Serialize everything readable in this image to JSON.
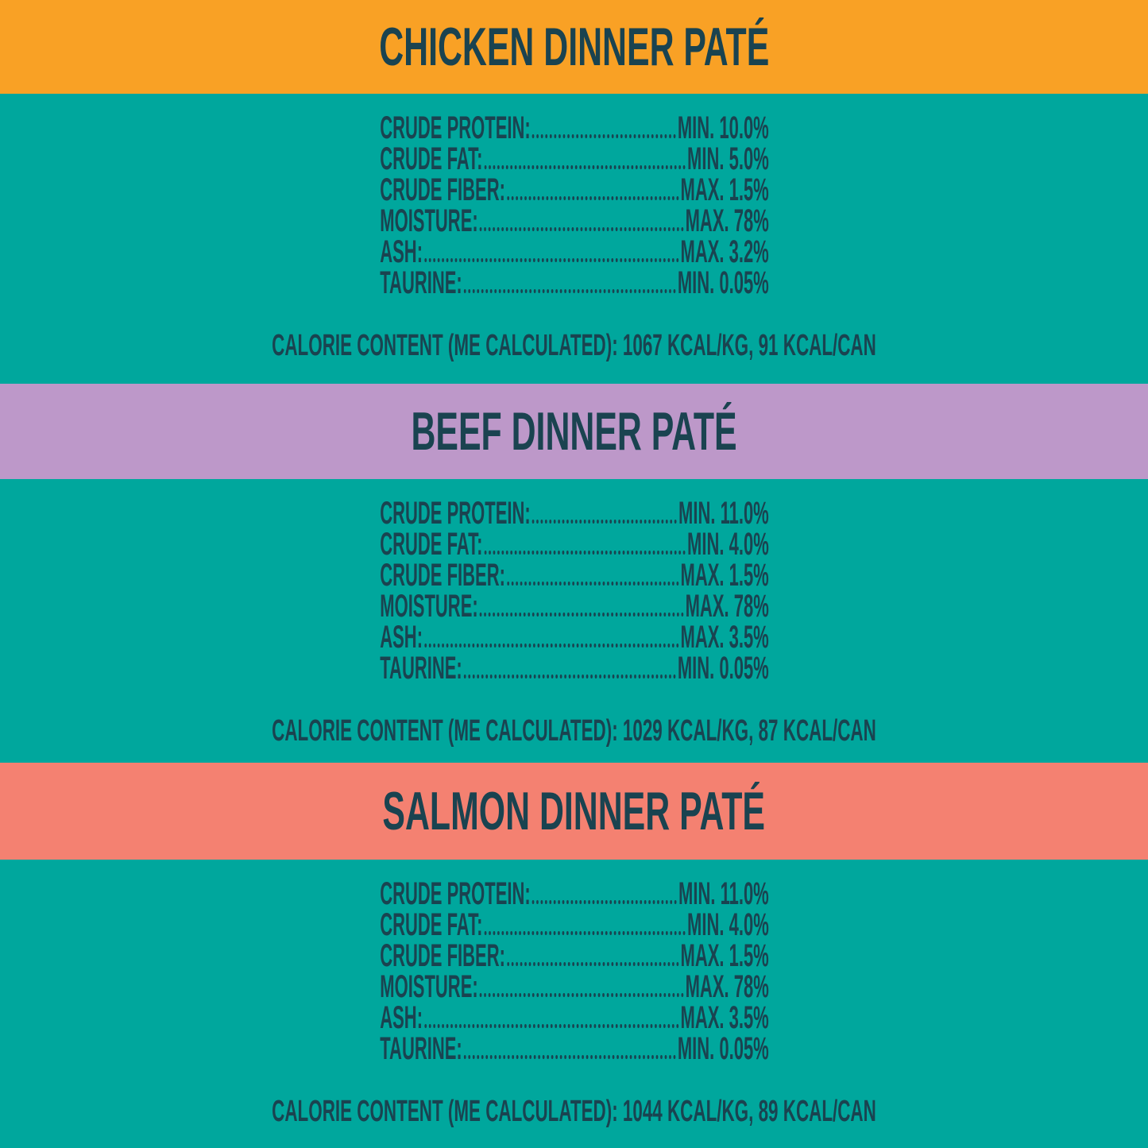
{
  "poster": {
    "colors": {
      "background": "#00A79D",
      "text": "#1A4350",
      "chicken_band": "#F9A125",
      "beef_band": "#BD98C9",
      "salmon_band": "#F48171"
    },
    "sections": [
      {
        "id": "chicken",
        "title": "CHICKEN DINNER PATÉ",
        "band_color": "#F9A125",
        "stats": [
          {
            "label": "CRUDE PROTEIN:",
            "value": "MIN. 10.0%"
          },
          {
            "label": "CRUDE FAT:",
            "value": "MIN. 5.0%"
          },
          {
            "label": "CRUDE FIBER:",
            "value": "MAX. 1.5%"
          },
          {
            "label": "MOISTURE:",
            "value": "MAX. 78%"
          },
          {
            "label": "ASH:",
            "value": "MAX. 3.2%"
          },
          {
            "label": "TAURINE:",
            "value": "MIN. 0.05%"
          }
        ],
        "calorie": "CALORIE CONTENT (ME CALCULATED): 1067 KCAL/KG, 91 KCAL/CAN"
      },
      {
        "id": "beef",
        "title": "BEEF DINNER PATÉ",
        "band_color": "#BD98C9",
        "stats": [
          {
            "label": "CRUDE PROTEIN:",
            "value": "MIN. 11.0%"
          },
          {
            "label": "CRUDE FAT:",
            "value": "MIN. 4.0%"
          },
          {
            "label": "CRUDE FIBER:",
            "value": "MAX. 1.5%"
          },
          {
            "label": "MOISTURE:",
            "value": "MAX. 78%"
          },
          {
            "label": "ASH:",
            "value": "MAX. 3.5%"
          },
          {
            "label": "TAURINE:",
            "value": "MIN. 0.05%"
          }
        ],
        "calorie": "CALORIE CONTENT (ME CALCULATED): 1029 KCAL/KG, 87 KCAL/CAN"
      },
      {
        "id": "salmon",
        "title": "SALMON DINNER PATÉ",
        "band_color": "#F48171",
        "stats": [
          {
            "label": "CRUDE PROTEIN:",
            "value": "MIN. 11.0%"
          },
          {
            "label": "CRUDE FAT:",
            "value": "MIN. 4.0%"
          },
          {
            "label": "CRUDE FIBER:",
            "value": "MAX. 1.5%"
          },
          {
            "label": "MOISTURE:",
            "value": "MAX. 78%"
          },
          {
            "label": "ASH:",
            "value": "MAX. 3.5%"
          },
          {
            "label": "TAURINE:",
            "value": "MIN. 0.05%"
          }
        ],
        "calorie": "CALORIE CONTENT (ME CALCULATED): 1044 KCAL/KG, 89 KCAL/CAN"
      }
    ]
  }
}
